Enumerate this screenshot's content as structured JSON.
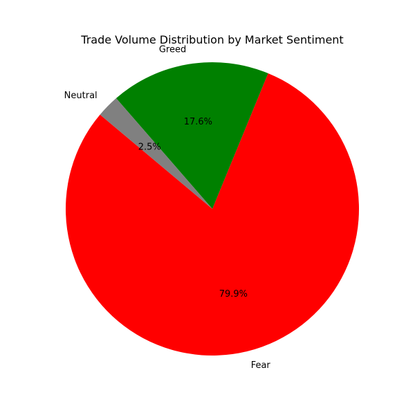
{
  "chart_data": {
    "type": "pie",
    "title": "Trade Volume Distribution by Market Sentiment",
    "slices": [
      {
        "label": "Fear",
        "value": 79.9,
        "pct_text": "79.9%",
        "color": "#ff0000"
      },
      {
        "label": "Greed",
        "value": 17.6,
        "pct_text": "17.6%",
        "color": "#008000"
      },
      {
        "label": "Neutral",
        "value": 2.5,
        "pct_text": "2.5%",
        "color": "#808080"
      }
    ],
    "legend": "none"
  }
}
